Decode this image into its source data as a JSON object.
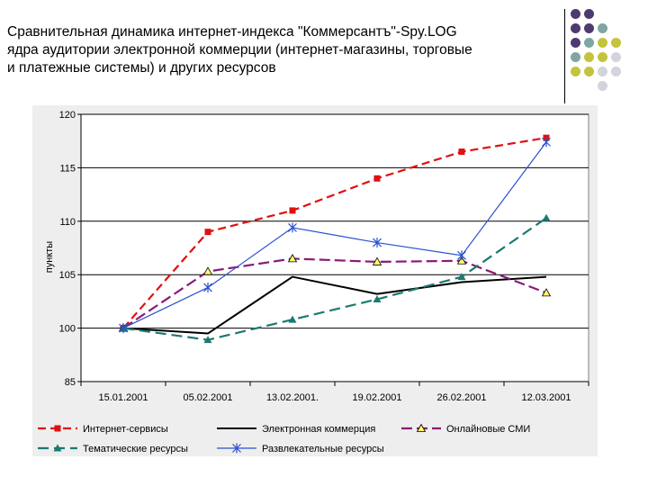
{
  "title": {
    "lines": [
      "Сравнительная динамика интернет-индекса \"Коммерсантъ\"-Spy.LOG",
      "ядра аудитории электронной коммерции (интернет-магазины, торговые",
      "и платежные системы) и других ресурсов"
    ]
  },
  "decor": {
    "colors": {
      "purple": "#4d3a73",
      "teal": "#7fa6a2",
      "olive": "#c4c43c",
      "gray": "#d3d3dd"
    },
    "rows": [
      [
        "purple",
        "purple",
        "",
        ""
      ],
      [
        "purple",
        "purple",
        "teal",
        ""
      ],
      [
        "purple",
        "teal",
        "olive",
        "olive"
      ],
      [
        "teal",
        "olive",
        "olive",
        "gray"
      ],
      [
        "olive",
        "olive",
        "gray",
        "gray"
      ],
      [
        "",
        "",
        "gray",
        ""
      ]
    ]
  },
  "chart_data": {
    "type": "line",
    "ylabel": "пункты",
    "ytick_labels": [
      "85",
      "100",
      "105",
      "110",
      "115",
      "120"
    ],
    "yticks_display": [
      85,
      100,
      105,
      110,
      115,
      120
    ],
    "y_axis_break": "lowest tick labelled 85 sits one step below 100",
    "ylim": [
      95,
      120
    ],
    "grid": true,
    "legend_position": "bottom",
    "categories": [
      "15.01.2001",
      "05.02.2001",
      "13.02.2001.",
      "19.02.2001",
      "26.02.2001",
      "12.03.2001"
    ],
    "series": [
      {
        "name": "Интернет-сервисы",
        "color": "#e01010",
        "dash": "9,5",
        "width": 2.2,
        "marker": "square",
        "values": [
          100,
          109,
          111,
          114,
          116.5,
          117.8
        ]
      },
      {
        "name": "Электронная коммерция",
        "color": "#000000",
        "dash": "",
        "width": 2,
        "marker": "none",
        "values": [
          100,
          99.5,
          104.8,
          103.2,
          104.3,
          104.8
        ]
      },
      {
        "name": "Онлайновые СМИ",
        "color": "#8a1a7a",
        "dash": "12,5",
        "width": 2.2,
        "marker": "triangle-yellow",
        "values": [
          100,
          105.3,
          106.5,
          106.2,
          106.3,
          103.3
        ]
      },
      {
        "name": "Тематические ресурсы",
        "color": "#1a7a70",
        "dash": "12,6",
        "width": 2.2,
        "marker": "triangle",
        "values": [
          100,
          98.9,
          100.8,
          102.7,
          104.8,
          110.3
        ]
      },
      {
        "name": "Развлекательные ресурсы",
        "color": "#2a52d0",
        "dash": "",
        "width": 1.2,
        "marker": "star",
        "values": [
          100,
          103.8,
          109.4,
          108,
          106.8,
          117.4
        ]
      }
    ]
  }
}
